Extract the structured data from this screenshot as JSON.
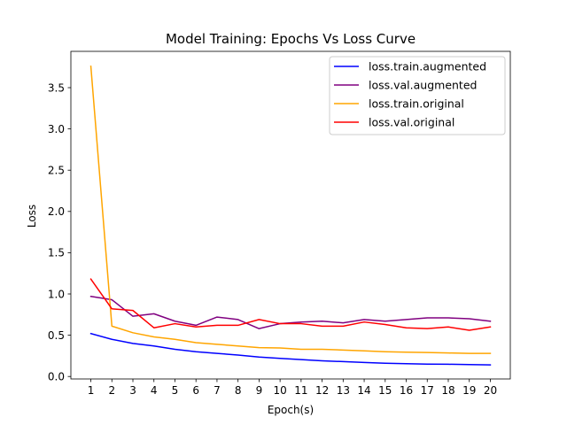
{
  "chart_data": {
    "type": "line",
    "title": "Model Training: Epochs Vs Loss Curve",
    "xlabel": "Epoch(s)",
    "ylabel": "Loss",
    "x": [
      1,
      2,
      3,
      4,
      5,
      6,
      7,
      8,
      9,
      10,
      11,
      12,
      13,
      14,
      15,
      16,
      17,
      18,
      19,
      20
    ],
    "xlim": [
      0.05,
      20.95
    ],
    "ylim": [
      -0.03,
      3.94
    ],
    "yticks": [
      "0.0",
      "0.5",
      "1.0",
      "1.5",
      "2.0",
      "2.5",
      "3.0",
      "3.5"
    ],
    "ytick_values": [
      0,
      0.5,
      1.0,
      1.5,
      2.0,
      2.5,
      3.0,
      3.5
    ],
    "grid": false,
    "legend_position": "top-right",
    "series": [
      {
        "name": "loss.train.augmented",
        "color": "#0000ff",
        "values": [
          0.52,
          0.45,
          0.4,
          0.37,
          0.33,
          0.3,
          0.28,
          0.26,
          0.235,
          0.22,
          0.205,
          0.19,
          0.18,
          0.17,
          0.16,
          0.155,
          0.15,
          0.148,
          0.145,
          0.14
        ]
      },
      {
        "name": "loss.val.augmented",
        "color": "#800080",
        "values": [
          0.97,
          0.93,
          0.73,
          0.76,
          0.67,
          0.62,
          0.72,
          0.69,
          0.58,
          0.64,
          0.66,
          0.67,
          0.65,
          0.69,
          0.67,
          0.69,
          0.71,
          0.71,
          0.7,
          0.67
        ]
      },
      {
        "name": "loss.train.original",
        "color": "#ffa500",
        "values": [
          3.76,
          0.61,
          0.53,
          0.48,
          0.45,
          0.41,
          0.39,
          0.37,
          0.35,
          0.345,
          0.33,
          0.33,
          0.32,
          0.31,
          0.3,
          0.295,
          0.29,
          0.285,
          0.28,
          0.28
        ]
      },
      {
        "name": "loss.val.original",
        "color": "#ff0000",
        "values": [
          1.18,
          0.82,
          0.8,
          0.59,
          0.64,
          0.6,
          0.62,
          0.62,
          0.69,
          0.64,
          0.64,
          0.61,
          0.61,
          0.66,
          0.63,
          0.59,
          0.58,
          0.6,
          0.56,
          0.6
        ]
      }
    ]
  }
}
